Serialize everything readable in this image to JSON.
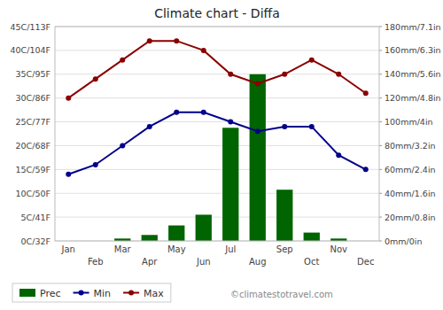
{
  "chart_data": {
    "type": "bar",
    "title": "Climate chart - Diffa",
    "categories": [
      "Jan",
      "Feb",
      "Mar",
      "Apr",
      "May",
      "Jun",
      "Jul",
      "Aug",
      "Sep",
      "Oct",
      "Nov",
      "Dec"
    ],
    "series": [
      {
        "name": "Prec",
        "type": "bar",
        "axis": "y2",
        "color": "#006400",
        "values": [
          0,
          0,
          2,
          5,
          13,
          22,
          95,
          140,
          43,
          7,
          2,
          0
        ]
      },
      {
        "name": "Min",
        "type": "line",
        "marker": "circle",
        "color": "#00008B",
        "values": [
          14,
          16,
          20,
          24,
          27,
          27,
          25,
          23,
          24,
          24,
          18,
          15
        ]
      },
      {
        "name": "Max",
        "type": "line",
        "marker": "circle",
        "color": "#8B0000",
        "values": [
          30,
          34,
          38,
          42,
          42,
          40,
          35,
          33,
          35,
          38,
          35,
          31
        ]
      }
    ],
    "ylim": [
      0,
      45
    ],
    "yticks": [
      {
        "value": 0,
        "label": "0C/32F"
      },
      {
        "value": 5,
        "label": "5C/41F"
      },
      {
        "value": 10,
        "label": "10C/50F"
      },
      {
        "value": 15,
        "label": "15C/59F"
      },
      {
        "value": 20,
        "label": "20C/68F"
      },
      {
        "value": 25,
        "label": "25C/77F"
      },
      {
        "value": 30,
        "label": "30C/86F"
      },
      {
        "value": 35,
        "label": "35C/95F"
      },
      {
        "value": 40,
        "label": "40C/104F"
      },
      {
        "value": 45,
        "label": "45C/113F"
      }
    ],
    "y2lim": [
      0,
      180
    ],
    "y2ticks": [
      {
        "value": 0,
        "label": "0mm/0in"
      },
      {
        "value": 20,
        "label": "20mm/0.8in"
      },
      {
        "value": 40,
        "label": "40mm/1.6in"
      },
      {
        "value": 60,
        "label": "60mm/2.4in"
      },
      {
        "value": 80,
        "label": "80mm/3.2in"
      },
      {
        "value": 100,
        "label": "100mm/4in"
      },
      {
        "value": 120,
        "label": "120mm/4.8in"
      },
      {
        "value": 140,
        "label": "140mm/5.6in"
      },
      {
        "value": 160,
        "label": "160mm/6.3in"
      },
      {
        "value": 180,
        "label": "180mm/7.1in"
      }
    ],
    "grid": true,
    "legend": "lower left",
    "annotations": [
      "©climatestotravel.com"
    ]
  }
}
